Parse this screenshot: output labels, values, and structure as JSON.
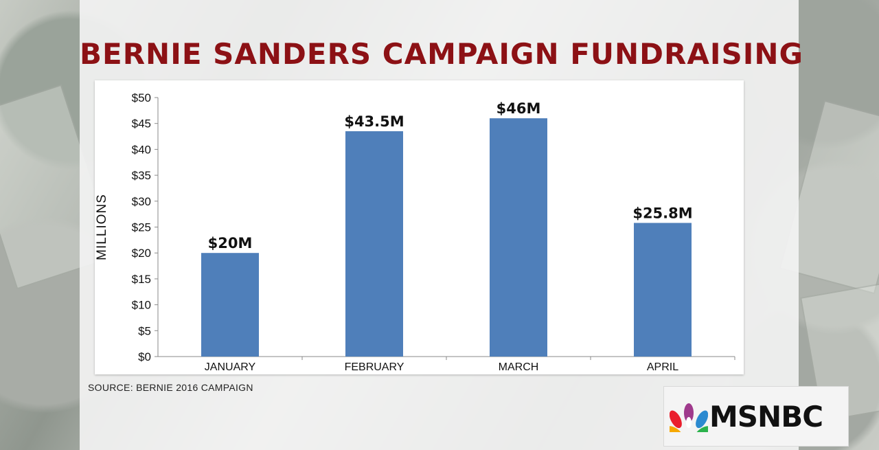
{
  "title": "BERNIE SANDERS CAMPAIGN FUNDRAISING",
  "source": "SOURCE: BERNIE 2016 CAMPAIGN",
  "logo_text": "MSNBC",
  "chart_data": {
    "type": "bar",
    "categories": [
      "JANUARY",
      "FEBRUARY",
      "MARCH",
      "APRIL"
    ],
    "values": [
      20,
      43.5,
      46,
      25.8
    ],
    "data_labels": [
      "$20M",
      "$43.5M",
      "$46M",
      "$25.8M"
    ],
    "ylabel": "MILLIONS",
    "ylim": [
      0,
      50
    ],
    "yticks": [
      0,
      5,
      10,
      15,
      20,
      25,
      30,
      35,
      40,
      45,
      50
    ],
    "ytick_labels": [
      "$0",
      "$5",
      "$10",
      "$15",
      "$20",
      "$25",
      "$30",
      "$35",
      "$40",
      "$45",
      "$50"
    ],
    "grid": false,
    "legend": "none",
    "bar_color": "#4f7fba"
  },
  "colors": {
    "title": "#8c1115",
    "bar": "#4f7fba"
  }
}
